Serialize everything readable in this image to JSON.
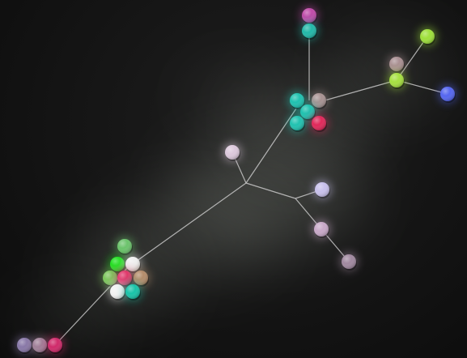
{
  "diagram": {
    "type": "minimum-spanning-tree",
    "background": "#121212",
    "edge_color": "#c8c8c8",
    "clusters": [
      {
        "id": "cluster-left",
        "members": [
          {
            "color": "#6cc36c"
          },
          {
            "color": "#1fe01f"
          },
          {
            "color": "#efefef"
          },
          {
            "color": "#7bc45a"
          },
          {
            "color": "#e0356a"
          },
          {
            "color": "#b48c6a"
          },
          {
            "color": "#f2f2f2"
          },
          {
            "color": "#18c3a8"
          }
        ]
      },
      {
        "id": "cluster-top",
        "members": [
          {
            "color": "#20c2b0"
          },
          {
            "color": "#a89292"
          },
          {
            "color": "#20c2b0"
          },
          {
            "color": "#20c2b0"
          },
          {
            "color": "#e0285a"
          }
        ]
      }
    ],
    "nodes": [
      {
        "id": "n-magenta-top",
        "color": "#c04aa8"
      },
      {
        "id": "n-teal-top",
        "color": "#22b8a8"
      },
      {
        "id": "n-lime-top",
        "color": "#9ee03a"
      },
      {
        "id": "n-taupe",
        "color": "#a98f92"
      },
      {
        "id": "n-lime-mid",
        "color": "#a6e040"
      },
      {
        "id": "n-blue",
        "color": "#5566f0"
      },
      {
        "id": "n-lavender-left",
        "color": "#dcc8dc"
      },
      {
        "id": "n-lavender-right",
        "color": "#c8c0ec"
      },
      {
        "id": "n-mauve-mid",
        "color": "#c8a8c8"
      },
      {
        "id": "n-mauve-low",
        "color": "#a0889f"
      },
      {
        "id": "n-purple-bl",
        "color": "#8878a8"
      },
      {
        "id": "n-mauve-bl",
        "color": "#a08098"
      },
      {
        "id": "n-red-bl",
        "color": "#d02a6a"
      }
    ]
  }
}
